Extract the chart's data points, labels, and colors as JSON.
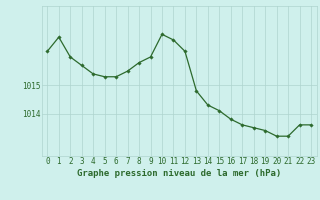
{
  "hours": [
    0,
    1,
    2,
    3,
    4,
    5,
    6,
    7,
    8,
    9,
    10,
    11,
    12,
    13,
    14,
    15,
    16,
    17,
    18,
    19,
    20,
    21,
    22,
    23
  ],
  "pressure": [
    1016.2,
    1016.7,
    1016.0,
    1015.7,
    1015.4,
    1015.3,
    1015.3,
    1015.5,
    1015.8,
    1016.0,
    1016.8,
    1016.6,
    1016.2,
    1014.8,
    1014.3,
    1014.1,
    1013.8,
    1013.6,
    1013.5,
    1013.4,
    1013.2,
    1013.2,
    1013.6,
    1013.6
  ],
  "line_color": "#2d6a2d",
  "marker": "D",
  "marker_size": 1.8,
  "bg_color": "#cff0ec",
  "grid_color": "#aed4ce",
  "axis_color": "#2d6a2d",
  "xlabel": "Graphe pression niveau de la mer (hPa)",
  "xlabel_fontsize": 6.5,
  "tick_fontsize": 5.5,
  "ytick_vals": [
    1014,
    1015
  ],
  "ytick_labels": [
    "1014",
    "1015"
  ],
  "ylim": [
    1012.5,
    1017.8
  ],
  "xlim": [
    -0.5,
    23.5
  ]
}
